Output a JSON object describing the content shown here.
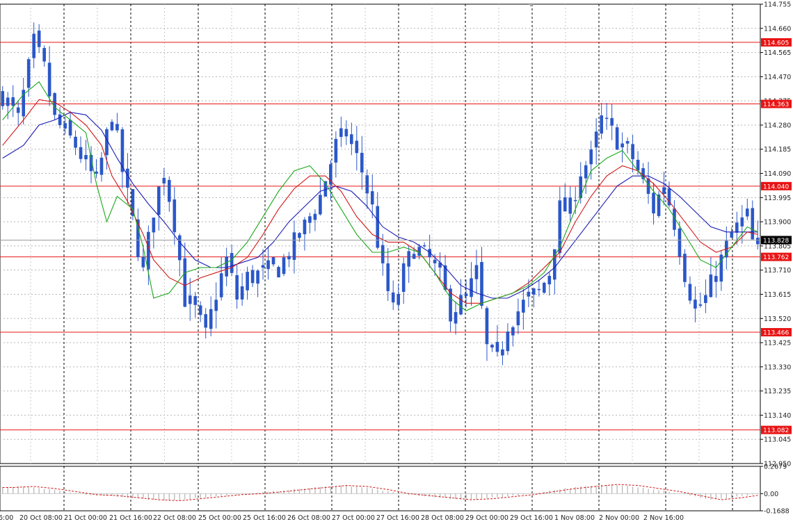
{
  "chart_data": [
    {
      "type": "candlestick",
      "x_tick_labels": [
        "20 Oct 08:00",
        "21 Oct 00:00",
        "21 Oct 16:00",
        "22 Oct 08:00",
        "25 Oct 00:00",
        "25 Oct 16:00",
        "26 Oct 08:00",
        "27 Oct 00:00",
        "27 Oct 16:00",
        "28 Oct 08:00",
        "29 Oct 00:00",
        "29 Oct 16:00",
        "1 Nov 08:00",
        "2 Nov 00:00",
        "2 Nov 16:00"
      ],
      "x_tick_partial": [
        "6:00"
      ],
      "y_tick_labels": [
        "114.755",
        "114.660",
        "114.565",
        "114.470",
        "114.375",
        "114.280",
        "114.185",
        "114.090",
        "113.995",
        "113.900",
        "113.805",
        "113.710",
        "113.615",
        "113.520",
        "113.425",
        "113.330",
        "113.235",
        "113.140",
        "113.045",
        "112.950"
      ],
      "ylim": [
        112.95,
        114.755
      ],
      "grid": true,
      "horizontal_levels": [
        {
          "value": 114.605,
          "label": "114.605",
          "color": "#e81414"
        },
        {
          "value": 114.363,
          "label": "114.363",
          "color": "#e81414"
        },
        {
          "value": 114.04,
          "label": "114.040",
          "color": "#e81414"
        },
        {
          "value": 113.762,
          "label": "113.762",
          "color": "#e81414"
        },
        {
          "value": 113.466,
          "label": "113.466",
          "color": "#e81414"
        },
        {
          "value": 113.082,
          "label": "113.082",
          "color": "#e81414"
        }
      ],
      "current_price": {
        "value": 113.828,
        "label": "113.828",
        "color": "#000000"
      },
      "candle_color": "#2b57c8",
      "moving_averages": [
        {
          "color": "#1aa81a"
        },
        {
          "color": "#d01818"
        },
        {
          "color": "#1a1ab4"
        }
      ],
      "close_path": [
        [
          0,
          114.4
        ],
        [
          3,
          114.3
        ],
        [
          6,
          114.6
        ],
        [
          8,
          114.5
        ],
        [
          10,
          114.3
        ],
        [
          14,
          114.2
        ],
        [
          18,
          114.05
        ],
        [
          21,
          114.33
        ],
        [
          23,
          114.1
        ],
        [
          25,
          113.9
        ],
        [
          27,
          113.7
        ],
        [
          29,
          113.95
        ],
        [
          31,
          114.1
        ],
        [
          33,
          113.9
        ],
        [
          35,
          113.6
        ],
        [
          37,
          113.55
        ],
        [
          39,
          113.45
        ],
        [
          41,
          113.62
        ],
        [
          43,
          113.75
        ],
        [
          45,
          113.6
        ],
        [
          47,
          113.68
        ],
        [
          50,
          113.7
        ],
        [
          53,
          113.72
        ],
        [
          55,
          113.78
        ],
        [
          58,
          113.88
        ],
        [
          61,
          114.0
        ],
        [
          64,
          114.2
        ],
        [
          66,
          114.25
        ],
        [
          69,
          114.1
        ],
        [
          71,
          113.95
        ],
        [
          73,
          113.7
        ],
        [
          75,
          113.55
        ],
        [
          77,
          113.7
        ],
        [
          79,
          113.8
        ],
        [
          82,
          113.75
        ],
        [
          84,
          113.68
        ],
        [
          86,
          113.55
        ],
        [
          89,
          113.6
        ],
        [
          91,
          113.7
        ],
        [
          93,
          113.4
        ],
        [
          95,
          113.35
        ],
        [
          97,
          113.5
        ],
        [
          99,
          113.55
        ],
        [
          101,
          113.6
        ],
        [
          103,
          113.62
        ],
        [
          105,
          113.7
        ],
        [
          107,
          113.95
        ],
        [
          109,
          113.95
        ],
        [
          111,
          114.1
        ],
        [
          113,
          114.15
        ],
        [
          115,
          114.3
        ],
        [
          117,
          114.25
        ],
        [
          119,
          114.2
        ],
        [
          121,
          114.15
        ],
        [
          123,
          114.05
        ],
        [
          125,
          113.95
        ],
        [
          127,
          114.05
        ],
        [
          129,
          113.9
        ],
        [
          131,
          113.7
        ],
        [
          133,
          113.55
        ],
        [
          135,
          113.6
        ],
        [
          138,
          113.75
        ],
        [
          140,
          113.85
        ],
        [
          142,
          113.9
        ],
        [
          143,
          113.92
        ],
        [
          144,
          113.82
        ],
        [
          145,
          113.78
        ]
      ],
      "ma_fast": [
        [
          0,
          114.3
        ],
        [
          4,
          114.4
        ],
        [
          7,
          114.45
        ],
        [
          10,
          114.35
        ],
        [
          13,
          114.3
        ],
        [
          16,
          114.25
        ],
        [
          18,
          114.05
        ],
        [
          20,
          113.9
        ],
        [
          22,
          114.0
        ],
        [
          25,
          113.95
        ],
        [
          27,
          113.8
        ],
        [
          29,
          113.6
        ],
        [
          32,
          113.62
        ],
        [
          35,
          113.7
        ],
        [
          38,
          113.72
        ],
        [
          41,
          113.72
        ],
        [
          44,
          113.75
        ],
        [
          47,
          113.82
        ],
        [
          50,
          113.92
        ],
        [
          53,
          114.02
        ],
        [
          56,
          114.1
        ],
        [
          59,
          114.12
        ],
        [
          62,
          114.05
        ],
        [
          65,
          113.95
        ],
        [
          68,
          113.85
        ],
        [
          71,
          113.78
        ],
        [
          74,
          113.78
        ],
        [
          77,
          113.8
        ],
        [
          80,
          113.78
        ],
        [
          83,
          113.7
        ],
        [
          86,
          113.6
        ],
        [
          89,
          113.55
        ],
        [
          92,
          113.58
        ],
        [
          95,
          113.6
        ],
        [
          98,
          113.62
        ],
        [
          101,
          113.65
        ],
        [
          104,
          113.7
        ],
        [
          107,
          113.8
        ],
        [
          110,
          113.95
        ],
        [
          113,
          114.1
        ],
        [
          116,
          114.15
        ],
        [
          119,
          114.18
        ],
        [
          122,
          114.1
        ],
        [
          125,
          114.02
        ],
        [
          128,
          113.95
        ],
        [
          131,
          113.85
        ],
        [
          134,
          113.75
        ],
        [
          137,
          113.72
        ],
        [
          140,
          113.8
        ],
        [
          143,
          113.88
        ],
        [
          145,
          113.86
        ]
      ],
      "ma_mid": [
        [
          0,
          114.2
        ],
        [
          4,
          114.3
        ],
        [
          7,
          114.38
        ],
        [
          10,
          114.37
        ],
        [
          13,
          114.33
        ],
        [
          16,
          114.28
        ],
        [
          19,
          114.2
        ],
        [
          21,
          114.08
        ],
        [
          24,
          113.98
        ],
        [
          27,
          113.85
        ],
        [
          29,
          113.75
        ],
        [
          32,
          113.68
        ],
        [
          35,
          113.65
        ],
        [
          38,
          113.68
        ],
        [
          41,
          113.7
        ],
        [
          44,
          113.72
        ],
        [
          47,
          113.76
        ],
        [
          50,
          113.85
        ],
        [
          53,
          113.95
        ],
        [
          56,
          114.03
        ],
        [
          59,
          114.08
        ],
        [
          62,
          114.08
        ],
        [
          65,
          114.02
        ],
        [
          68,
          113.92
        ],
        [
          71,
          113.85
        ],
        [
          74,
          113.82
        ],
        [
          77,
          113.82
        ],
        [
          80,
          113.78
        ],
        [
          83,
          113.7
        ],
        [
          86,
          113.62
        ],
        [
          89,
          113.58
        ],
        [
          92,
          113.58
        ],
        [
          95,
          113.6
        ],
        [
          98,
          113.62
        ],
        [
          101,
          113.66
        ],
        [
          104,
          113.72
        ],
        [
          107,
          113.78
        ],
        [
          110,
          113.9
        ],
        [
          113,
          114.0
        ],
        [
          116,
          114.08
        ],
        [
          119,
          114.12
        ],
        [
          122,
          114.1
        ],
        [
          125,
          114.05
        ],
        [
          128,
          113.98
        ],
        [
          131,
          113.9
        ],
        [
          134,
          113.82
        ],
        [
          137,
          113.78
        ],
        [
          140,
          113.8
        ],
        [
          143,
          113.86
        ],
        [
          145,
          113.85
        ]
      ],
      "ma_slow": [
        [
          0,
          114.15
        ],
        [
          4,
          114.2
        ],
        [
          7,
          114.28
        ],
        [
          10,
          114.3
        ],
        [
          13,
          114.33
        ],
        [
          16,
          114.32
        ],
        [
          19,
          114.26
        ],
        [
          22,
          114.15
        ],
        [
          25,
          114.05
        ],
        [
          28,
          113.97
        ],
        [
          31,
          113.9
        ],
        [
          34,
          113.82
        ],
        [
          37,
          113.75
        ],
        [
          40,
          113.72
        ],
        [
          43,
          113.72
        ],
        [
          46,
          113.74
        ],
        [
          49,
          113.76
        ],
        [
          52,
          113.82
        ],
        [
          55,
          113.9
        ],
        [
          58,
          113.96
        ],
        [
          61,
          114.02
        ],
        [
          64,
          114.04
        ],
        [
          67,
          114.02
        ],
        [
          70,
          113.96
        ],
        [
          73,
          113.88
        ],
        [
          76,
          113.84
        ],
        [
          79,
          113.82
        ],
        [
          82,
          113.78
        ],
        [
          85,
          113.72
        ],
        [
          88,
          113.65
        ],
        [
          91,
          113.62
        ],
        [
          94,
          113.6
        ],
        [
          97,
          113.6
        ],
        [
          100,
          113.63
        ],
        [
          103,
          113.67
        ],
        [
          106,
          113.72
        ],
        [
          109,
          113.8
        ],
        [
          112,
          113.88
        ],
        [
          115,
          113.96
        ],
        [
          118,
          114.04
        ],
        [
          121,
          114.08
        ],
        [
          124,
          114.08
        ],
        [
          127,
          114.05
        ],
        [
          130,
          114.0
        ],
        [
          133,
          113.94
        ],
        [
          136,
          113.88
        ],
        [
          139,
          113.86
        ],
        [
          142,
          113.86
        ],
        [
          145,
          113.86
        ]
      ]
    },
    {
      "type": "histogram",
      "y_tick_labels": [
        "0.2679",
        "0.00",
        "-0.1688"
      ],
      "ylim": [
        -0.1688,
        0.2679
      ],
      "signal_color": "#d01818",
      "bar_color": "#b8b8b8",
      "values": [
        [
          0,
          0.06
        ],
        [
          4,
          0.07
        ],
        [
          8,
          0.05
        ],
        [
          12,
          0.02
        ],
        [
          16,
          -0.01
        ],
        [
          20,
          -0.02
        ],
        [
          24,
          -0.04
        ],
        [
          28,
          -0.06
        ],
        [
          32,
          -0.07
        ],
        [
          36,
          -0.05
        ],
        [
          40,
          -0.03
        ],
        [
          44,
          -0.01
        ],
        [
          48,
          0.0
        ],
        [
          52,
          0.02
        ],
        [
          56,
          0.04
        ],
        [
          60,
          0.06
        ],
        [
          64,
          0.08
        ],
        [
          68,
          0.07
        ],
        [
          72,
          0.04
        ],
        [
          76,
          0.0
        ],
        [
          80,
          -0.02
        ],
        [
          84,
          -0.04
        ],
        [
          88,
          -0.06
        ],
        [
          92,
          -0.05
        ],
        [
          96,
          -0.03
        ],
        [
          100,
          -0.01
        ],
        [
          104,
          0.02
        ],
        [
          108,
          0.05
        ],
        [
          112,
          0.07
        ],
        [
          116,
          0.09
        ],
        [
          120,
          0.08
        ],
        [
          124,
          0.05
        ],
        [
          128,
          0.02
        ],
        [
          132,
          -0.02
        ],
        [
          136,
          -0.06
        ],
        [
          140,
          -0.04
        ],
        [
          144,
          -0.01
        ]
      ]
    }
  ]
}
